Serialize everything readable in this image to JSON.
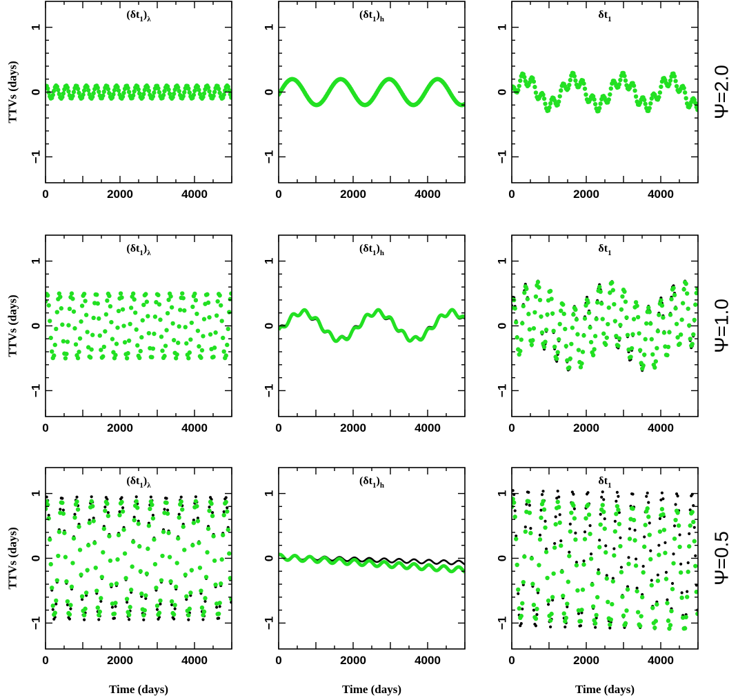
{
  "figure": {
    "row_labels": [
      "Ψ=2.0",
      "Ψ=1.0",
      "Ψ=0.5"
    ],
    "ylabel": "TTVs (days)",
    "xlabel": "Time (days)"
  },
  "colors": {
    "model": "#000000",
    "fit": "#22e022"
  },
  "chart_data": [
    {
      "type": "line",
      "title": "(δt1)λ",
      "title_main": "(δt",
      "title_sub": "1",
      "title_tail": ")λ",
      "row": "Ψ=2.0",
      "xlim": [
        0,
        5000
      ],
      "ylim": [
        -1.4,
        1.4
      ],
      "xticks": [
        0,
        2000,
        4000
      ],
      "yticks": [
        -1,
        0,
        1
      ],
      "ylabel": "TTVs (days)",
      "xlabel": "",
      "series": [
        {
          "style": "line",
          "color": "#000000",
          "params": {
            "components": [
              {
                "amplitude": 0.1,
                "period": 270,
                "phase": 1.2
              }
            ],
            "offset": 0
          }
        },
        {
          "style": "dots",
          "color": "#22e022",
          "params": {
            "components": [
              {
                "amplitude": 0.1,
                "period": 270,
                "phase": 1.2
              }
            ],
            "offset": 0
          }
        }
      ]
    },
    {
      "type": "line",
      "title": "(δt1)h",
      "title_main": "(δt",
      "title_sub": "1",
      "title_tail": ")h",
      "row": "Ψ=2.0",
      "xlim": [
        0,
        5000
      ],
      "ylim": [
        -1.4,
        1.4
      ],
      "xticks": [
        0,
        2000,
        4000
      ],
      "yticks": [
        -1,
        0,
        1
      ],
      "ylabel": "",
      "xlabel": "",
      "series": [
        {
          "style": "line",
          "color": "#000000",
          "params": {
            "components": [
              {
                "amplitude": 0.2,
                "period": 1300,
                "phase": -0.2
              }
            ],
            "offset": 0
          }
        },
        {
          "style": "dots",
          "color": "#22e022",
          "params": {
            "components": [
              {
                "amplitude": 0.2,
                "period": 1300,
                "phase": -0.2
              }
            ],
            "offset": 0
          }
        }
      ]
    },
    {
      "type": "line",
      "title": "δt1",
      "title_main": "δt",
      "title_sub": "1",
      "title_tail": "",
      "row": "Ψ=2.0",
      "xlim": [
        0,
        5000
      ],
      "ylim": [
        -1.4,
        1.4
      ],
      "xticks": [
        0,
        2000,
        4000
      ],
      "yticks": [
        -1,
        0,
        1
      ],
      "ylabel": "",
      "xlabel": "",
      "series": [
        {
          "style": "dots",
          "color": "#000000",
          "params": {
            "components": [
              {
                "amplitude": 0.2,
                "period": 1300,
                "phase": -0.2
              },
              {
                "amplitude": 0.1,
                "period": 270,
                "phase": 1.2
              }
            ],
            "offset": 0
          }
        },
        {
          "style": "dots",
          "color": "#22e022",
          "params": {
            "components": [
              {
                "amplitude": 0.2,
                "period": 1300,
                "phase": -0.2
              },
              {
                "amplitude": 0.1,
                "period": 270,
                "phase": 1.2
              }
            ],
            "offset": 0
          }
        }
      ]
    },
    {
      "type": "scatter",
      "title": "(δt1)λ",
      "title_main": "(δt",
      "title_sub": "1",
      "title_tail": ")λ",
      "row": "Ψ=1.0",
      "xlim": [
        0,
        5000
      ],
      "ylim": [
        -1.4,
        1.4
      ],
      "xticks": [
        0,
        2000,
        4000
      ],
      "yticks": [
        -1,
        0,
        1
      ],
      "ylabel": "TTVs (days)",
      "xlabel": "",
      "series": [
        {
          "style": "dots",
          "color": "#000000",
          "params": {
            "components": [
              {
                "amplitude": 0.5,
                "period": 330,
                "phase": 0.8
              }
            ],
            "offset": 0
          }
        },
        {
          "style": "dots",
          "color": "#22e022",
          "params": {
            "components": [
              {
                "amplitude": 0.5,
                "period": 330,
                "phase": 0.8
              }
            ],
            "offset": 0
          }
        }
      ]
    },
    {
      "type": "line",
      "title": "(δt1)h",
      "title_main": "(δt",
      "title_sub": "1",
      "title_tail": ")h",
      "row": "Ψ=1.0",
      "xlim": [
        0,
        5000
      ],
      "ylim": [
        -1.4,
        1.4
      ],
      "xticks": [
        0,
        2000,
        4000
      ],
      "yticks": [
        -1,
        0,
        1
      ],
      "ylabel": "",
      "xlabel": "",
      "series": [
        {
          "style": "line",
          "color": "#000000",
          "params": {
            "components": [
              {
                "amplitude": 0.2,
                "period": 2000,
                "phase": -0.35
              },
              {
                "amplitude": 0.04,
                "period": 330,
                "phase": 0.8
              }
            ],
            "offset": 0
          }
        },
        {
          "style": "thick",
          "color": "#22e022",
          "params": {
            "components": [
              {
                "amplitude": 0.21,
                "period": 2000,
                "phase": -0.45
              },
              {
                "amplitude": 0.04,
                "period": 330,
                "phase": 0.8
              }
            ],
            "offset": 0
          }
        }
      ]
    },
    {
      "type": "scatter",
      "title": "δt1",
      "title_main": "δt",
      "title_sub": "1",
      "title_tail": "",
      "row": "Ψ=1.0",
      "xlim": [
        0,
        5000
      ],
      "ylim": [
        -1.4,
        1.4
      ],
      "xticks": [
        0,
        2000,
        4000
      ],
      "yticks": [
        -1,
        0,
        1
      ],
      "ylabel": "",
      "xlabel": "",
      "series": [
        {
          "style": "dots",
          "color": "#000000",
          "params": {
            "components": [
              {
                "amplitude": 0.2,
                "period": 2000,
                "phase": -0.35
              },
              {
                "amplitude": 0.5,
                "period": 330,
                "phase": 0.8
              }
            ],
            "offset": 0
          }
        },
        {
          "style": "dots",
          "color": "#22e022",
          "params": {
            "components": [
              {
                "amplitude": 0.2,
                "period": 2000,
                "phase": -0.45
              },
              {
                "amplitude": 0.48,
                "period": 330,
                "phase": 0.8
              }
            ],
            "offset": 0
          }
        }
      ]
    },
    {
      "type": "scatter",
      "title": "(δt1)λ",
      "title_main": "(δt",
      "title_sub": "1",
      "title_tail": ")λ",
      "row": "Ψ=0.5",
      "xlim": [
        0,
        5000
      ],
      "ylim": [
        -1.4,
        1.4
      ],
      "xticks": [
        0,
        2000,
        4000
      ],
      "yticks": [
        -1,
        0,
        1
      ],
      "ylabel": "TTVs (days)",
      "xlabel": "Time (days)",
      "series": [
        {
          "style": "dots",
          "color": "#000000",
          "params": {
            "components": [
              {
                "amplitude": 0.95,
                "period": 400,
                "phase": 1.0
              }
            ],
            "offset": 0
          }
        },
        {
          "style": "dots",
          "color": "#22e022",
          "params": {
            "components": [
              {
                "amplitude": 0.88,
                "period": 400,
                "phase": 1.0
              }
            ],
            "offset": 0
          }
        }
      ]
    },
    {
      "type": "line",
      "title": "(δt1)h",
      "title_main": "(δt",
      "title_sub": "1",
      "title_tail": ")h",
      "row": "Ψ=0.5",
      "xlim": [
        0,
        5000
      ],
      "ylim": [
        -1.4,
        1.4
      ],
      "xticks": [
        0,
        2000,
        4000
      ],
      "yticks": [
        -1,
        0,
        1
      ],
      "ylabel": "",
      "xlabel": "Time (days)",
      "series": [
        {
          "style": "line",
          "color": "#000000",
          "params": {
            "components": [
              {
                "amplitude": 0.03,
                "period": 400,
                "phase": 1.0
              }
            ],
            "offset": 0.02,
            "trend": -1.8e-05
          }
        },
        {
          "style": "thick",
          "color": "#22e022",
          "params": {
            "components": [
              {
                "amplitude": 0.04,
                "period": 400,
                "phase": 1.0
              }
            ],
            "offset": 0.02,
            "trend": -4e-05
          }
        }
      ]
    },
    {
      "type": "scatter",
      "title": "δt1",
      "title_main": "δt",
      "title_sub": "1",
      "title_tail": "",
      "row": "Ψ=0.5",
      "xlim": [
        0,
        5000
      ],
      "ylim": [
        -1.4,
        1.4
      ],
      "xticks": [
        0,
        2000,
        4000
      ],
      "yticks": [
        -1,
        0,
        1
      ],
      "ylabel": "",
      "xlabel": "Time (days)",
      "series": [
        {
          "style": "dots",
          "color": "#000000",
          "params": {
            "components": [
              {
                "amplitude": 1.05,
                "period": 400,
                "phase": 1.0
              }
            ],
            "offset": 0,
            "trend": -1e-05
          }
        },
        {
          "style": "dots",
          "color": "#22e022",
          "params": {
            "components": [
              {
                "amplitude": 0.92,
                "period": 400,
                "phase": 1.0
              }
            ],
            "offset": 0,
            "trend": -4e-05
          }
        }
      ]
    }
  ]
}
